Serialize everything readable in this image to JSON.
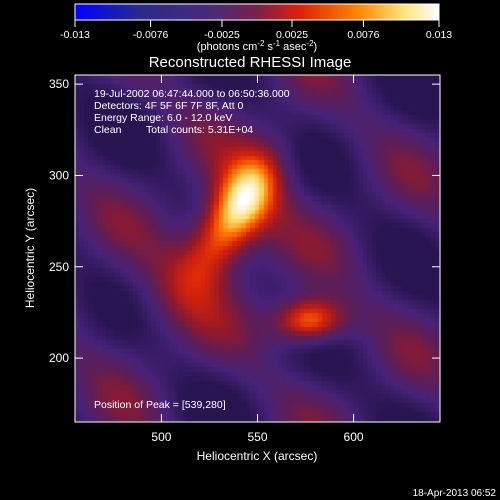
{
  "chart_data": {
    "type": "heatmap",
    "title": "Reconstructed RHESSI Image",
    "xlabel": "Heliocentric X (arcsec)",
    "ylabel": "Heliocentric Y (arcsec)",
    "xlim": [
      455,
      645
    ],
    "ylim": [
      165,
      355
    ],
    "x_ticks": [
      500,
      550,
      600
    ],
    "y_ticks": [
      200,
      250,
      300,
      350
    ],
    "x_tick_labels": [
      "500",
      "550",
      "600"
    ],
    "y_tick_labels": [
      "200",
      "250",
      "300",
      "350"
    ],
    "colorbar": {
      "range": [
        -0.013,
        0.013
      ],
      "tick_values": [
        -0.013,
        -0.0076,
        -0.0025,
        0.0025,
        0.0076,
        0.013
      ],
      "tick_labels": [
        "-0.013",
        "-0.0076",
        "-0.0025",
        "0.0025",
        "0.0076",
        "0.013"
      ],
      "units_base": "(photons cm",
      "units_exp1": "-2",
      "units_mid": " s",
      "units_exp2": "-1",
      "units_mid2": " asec",
      "units_exp3": "-2",
      "units_end": ")",
      "colormap": [
        "#0000ff",
        "#2e1d6e",
        "#4a2a7f",
        "#9b1a3a",
        "#ff1f00",
        "#ff8a00",
        "#fff2b0",
        "#ffffff"
      ]
    },
    "annotations": {
      "time": "19-Jul-2002 06:47:44.000 to 06:50:36.000",
      "detectors": "Detectors: 4F 5F 6F 7F 8F, Att 0",
      "energy": "Energy Range: 6.0 - 12.0 keV",
      "clean_label": "Clean",
      "counts": "Total counts: 5.31E+04",
      "peak": "Position of Peak = [539,280]"
    },
    "sources": [
      {
        "x": 539,
        "y": 280,
        "amp": 1.0,
        "sx": 11,
        "sy": 26,
        "angle": 30
      },
      {
        "x": 577,
        "y": 220,
        "amp": 0.95,
        "sx": 13,
        "sy": 9,
        "angle": 0
      }
    ],
    "footer_date": "18-Apr-2013 06:52"
  }
}
